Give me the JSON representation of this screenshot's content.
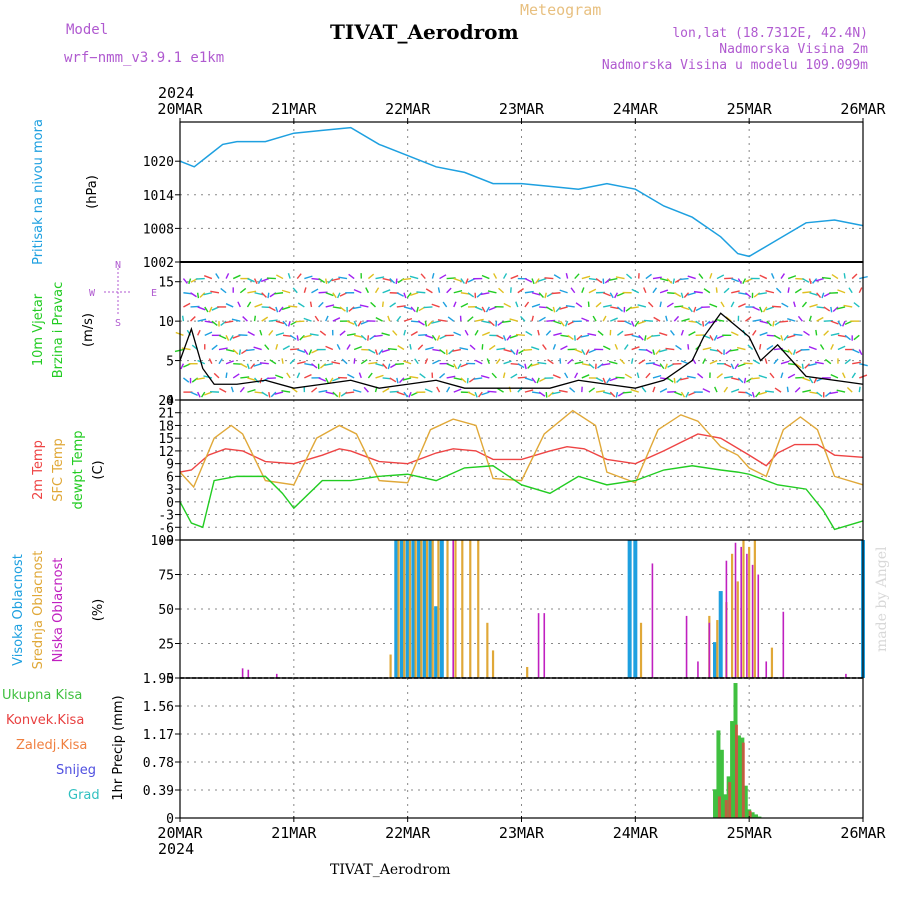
{
  "header": {
    "model_label": "Model",
    "model_name": "wrf−nmm_v3.9.1 e1km",
    "product": "Meteogram",
    "station": "TIVAT_Aerodrom",
    "lonlat": "lon,lat (18.7312E, 42.4N)",
    "height": "Nadmorska Visina 2m",
    "model_height": "Nadmorska Visina u modelu 109.099m"
  },
  "footer": {
    "station": "TIVAT_Aerodrom",
    "watermark": "made by Angel"
  },
  "colors": {
    "pressure": "#1ea0e0",
    "wind_axis": "#22cc22",
    "t2m": "#ee4444",
    "tsfc": "#e0a838",
    "dewpt": "#22cc22",
    "cloud_high": "#1ea0e0",
    "cloud_mid": "#e0a838",
    "cloud_low": "#c020c0",
    "precip_total": "#40c040",
    "precip_conv": "#e84040",
    "precip_frozen": "#f08040",
    "snow": "#5050e0",
    "hail": "#30c0c0"
  },
  "chart_data": [
    {
      "type": "line",
      "name": "pressure",
      "ylabel": [
        "Pritisak na nivou mora",
        "(hPa)"
      ],
      "yticks": [
        1002,
        1008,
        1014,
        1020
      ],
      "ylim": [
        1002,
        1027
      ],
      "x_day_offsets": [
        0,
        0.125,
        0.25,
        0.375,
        0.5,
        0.75,
        1,
        1.25,
        1.5,
        1.75,
        2,
        2.25,
        2.5,
        2.75,
        3,
        3.25,
        3.5,
        3.75,
        4,
        4.25,
        4.5,
        4.75,
        4.9,
        5,
        5.25,
        5.5,
        5.75,
        6
      ],
      "values": [
        1020,
        1019,
        1021,
        1023,
        1023.5,
        1023.5,
        1025,
        1025.5,
        1026,
        1023,
        1021,
        1019,
        1018,
        1016,
        1016,
        1015.5,
        1015,
        1016,
        1015,
        1012,
        1010,
        1006.5,
        1003.5,
        1003,
        1006,
        1009,
        1009.5,
        1008.5
      ],
      "grid": true
    },
    {
      "type": "line",
      "name": "wind",
      "ylabel": [
        "10m Vjetar",
        "Brzina i Pravac",
        "(m/s)"
      ],
      "compass": [
        "N",
        "W",
        "E",
        "S"
      ],
      "yticks": [
        0,
        5,
        10,
        15
      ],
      "ylim": [
        0,
        17.5
      ],
      "x_day_offsets": [
        0,
        0.1,
        0.2,
        0.3,
        0.5,
        0.75,
        1,
        1.25,
        1.5,
        1.75,
        2,
        2.25,
        2.5,
        2.75,
        3,
        3.25,
        3.5,
        3.75,
        4,
        4.25,
        4.5,
        4.6,
        4.75,
        5,
        5.1,
        5.25,
        5.5,
        6
      ],
      "values": [
        5,
        9,
        4,
        2,
        2,
        2.5,
        1.5,
        2,
        2.5,
        1.5,
        2,
        2.5,
        1.5,
        1.5,
        1.5,
        1.5,
        2.5,
        2,
        1.5,
        2.5,
        5,
        8,
        11,
        8,
        5,
        7,
        3,
        2
      ],
      "grid": true
    },
    {
      "type": "line",
      "name": "temperature",
      "ylabel": [
        "2m Temp",
        "SFC Temp",
        "dewpt Temp",
        "(C)"
      ],
      "yticks": [
        -9,
        -6,
        -3,
        0,
        3,
        6,
        9,
        12,
        15,
        18,
        21,
        24
      ],
      "ylim": [
        -9,
        24
      ],
      "series": [
        {
          "name": "2m Temp",
          "x_day_offsets": [
            0,
            0.1,
            0.25,
            0.4,
            0.55,
            0.75,
            1,
            1.25,
            1.4,
            1.5,
            1.75,
            2,
            2.25,
            2.4,
            2.6,
            2.75,
            3,
            3.25,
            3.4,
            3.55,
            3.75,
            4,
            4.25,
            4.4,
            4.55,
            4.75,
            5,
            5.15,
            5.25,
            5.4,
            5.6,
            5.75,
            6
          ],
          "values": [
            7,
            7.5,
            11,
            12.5,
            12,
            9.5,
            9,
            11,
            12.5,
            12,
            9.5,
            9,
            11.5,
            12.5,
            12,
            10,
            10,
            12,
            13,
            12.5,
            10,
            9,
            12,
            14,
            16,
            15,
            11,
            8.5,
            11.5,
            13.5,
            13.5,
            11,
            10.5
          ]
        },
        {
          "name": "SFC Temp",
          "x_day_offsets": [
            0,
            0.12,
            0.3,
            0.45,
            0.55,
            0.75,
            1,
            1.2,
            1.4,
            1.55,
            1.75,
            2,
            2.2,
            2.4,
            2.6,
            2.75,
            3,
            3.2,
            3.45,
            3.65,
            3.75,
            4,
            4.2,
            4.4,
            4.55,
            4.75,
            4.9,
            5,
            5.15,
            5.3,
            5.45,
            5.6,
            5.75,
            6
          ],
          "values": [
            7,
            3.5,
            15,
            18,
            16,
            5,
            4,
            15,
            18,
            16,
            5,
            4.5,
            17,
            19.5,
            18,
            5.5,
            5,
            16,
            21.5,
            18,
            7,
            4.5,
            17,
            20.5,
            19,
            13,
            11,
            8,
            6,
            17,
            20,
            17,
            6,
            4
          ]
        },
        {
          "name": "dewpt Temp",
          "x_day_offsets": [
            0,
            0.1,
            0.2,
            0.3,
            0.5,
            0.75,
            0.9,
            1,
            1.25,
            1.5,
            1.75,
            2,
            2.25,
            2.5,
            2.75,
            3,
            3.25,
            3.5,
            3.75,
            4,
            4.25,
            4.5,
            4.75,
            4.9,
            5,
            5.25,
            5.5,
            5.65,
            5.75,
            6
          ],
          "values": [
            0,
            -5,
            -6,
            5,
            6,
            6,
            2,
            -1.5,
            5,
            5,
            6,
            6.5,
            5,
            8,
            8.5,
            4,
            2,
            6,
            4,
            5,
            7.5,
            8.5,
            7.5,
            7,
            6.5,
            4,
            3,
            -2,
            -6.5,
            -4.5
          ]
        }
      ],
      "grid": true
    },
    {
      "type": "bar",
      "name": "clouds",
      "ylabel": [
        "Visoka Oblacnost",
        "Srednja Oblacnost",
        "Niska Oblacnost",
        "(%)"
      ],
      "yticks": [
        0,
        25,
        50,
        75,
        100
      ],
      "ylim": [
        0,
        100
      ],
      "series": [
        {
          "name": "Visoka Oblacnost",
          "x_day_offsets": [
            1.9,
            1.95,
            2.0,
            2.05,
            2.1,
            2.15,
            2.2,
            2.25,
            2.3,
            3.95,
            4.0,
            4.7,
            4.75,
            6.0
          ],
          "values": [
            100,
            100,
            100,
            100,
            100,
            100,
            100,
            52,
            100,
            100,
            100,
            26,
            63,
            100
          ]
        },
        {
          "name": "Srednja Oblacnost",
          "x_day_offsets": [
            1.85,
            1.92,
            1.97,
            2.02,
            2.07,
            2.12,
            2.17,
            2.22,
            2.27,
            2.35,
            2.42,
            2.48,
            2.55,
            2.62,
            2.7,
            2.75,
            3.05,
            4.05,
            4.65,
            4.72,
            4.8,
            4.85,
            4.9,
            4.95,
            5.0,
            5.05,
            5.2
          ],
          "values": [
            17,
            100,
            100,
            100,
            100,
            100,
            100,
            100,
            100,
            100,
            100,
            100,
            100,
            100,
            40,
            20,
            8,
            40,
            45,
            42,
            55,
            90,
            70,
            100,
            95,
            100,
            22
          ]
        },
        {
          "name": "Niska Oblacnost",
          "x_day_offsets": [
            0.55,
            0.6,
            0.85,
            2.4,
            3.15,
            3.2,
            4.15,
            4.45,
            4.55,
            4.65,
            4.8,
            4.88,
            4.93,
            4.98,
            5.03,
            5.08,
            5.15,
            5.3,
            5.85
          ],
          "values": [
            7,
            6,
            3,
            100,
            47,
            47,
            83,
            45,
            12,
            40,
            85,
            98,
            95,
            90,
            82,
            75,
            12,
            48,
            3
          ]
        }
      ],
      "grid": true
    },
    {
      "type": "bar",
      "name": "precip",
      "ylabel": [
        "Ukupna Kisa",
        "Konvek.Kisa",
        "Zaledj.Kisa",
        "Snijeg",
        "Grad",
        "1hr Precip (mm)"
      ],
      "yticks": [
        0,
        0.39,
        0.78,
        1.17,
        1.56,
        1.95
      ],
      "ylim": [
        0,
        1.95
      ],
      "series": [
        {
          "name": "Ukupna Kisa",
          "x_day_offsets": [
            4.7,
            4.73,
            4.76,
            4.79,
            4.82,
            4.85,
            4.88,
            4.91,
            4.94,
            4.97,
            5.0,
            5.03,
            5.06,
            5.09
          ],
          "values": [
            0.4,
            1.22,
            0.95,
            0.33,
            0.58,
            1.35,
            1.88,
            1.15,
            1.12,
            0.45,
            0.12,
            0.08,
            0.05,
            0.02
          ]
        },
        {
          "name": "Konvek.Kisa",
          "x_day_offsets": [
            4.73,
            4.79,
            4.82,
            4.88,
            4.94,
            5.0
          ],
          "values": [
            0.3,
            0.25,
            0.5,
            1.3,
            1.05,
            0.1
          ]
        }
      ],
      "grid": true
    }
  ],
  "x_axis": {
    "year": "2024",
    "labels": [
      "20MAR",
      "21MAR",
      "22MAR",
      "23MAR",
      "24MAR",
      "25MAR",
      "26MAR"
    ]
  }
}
